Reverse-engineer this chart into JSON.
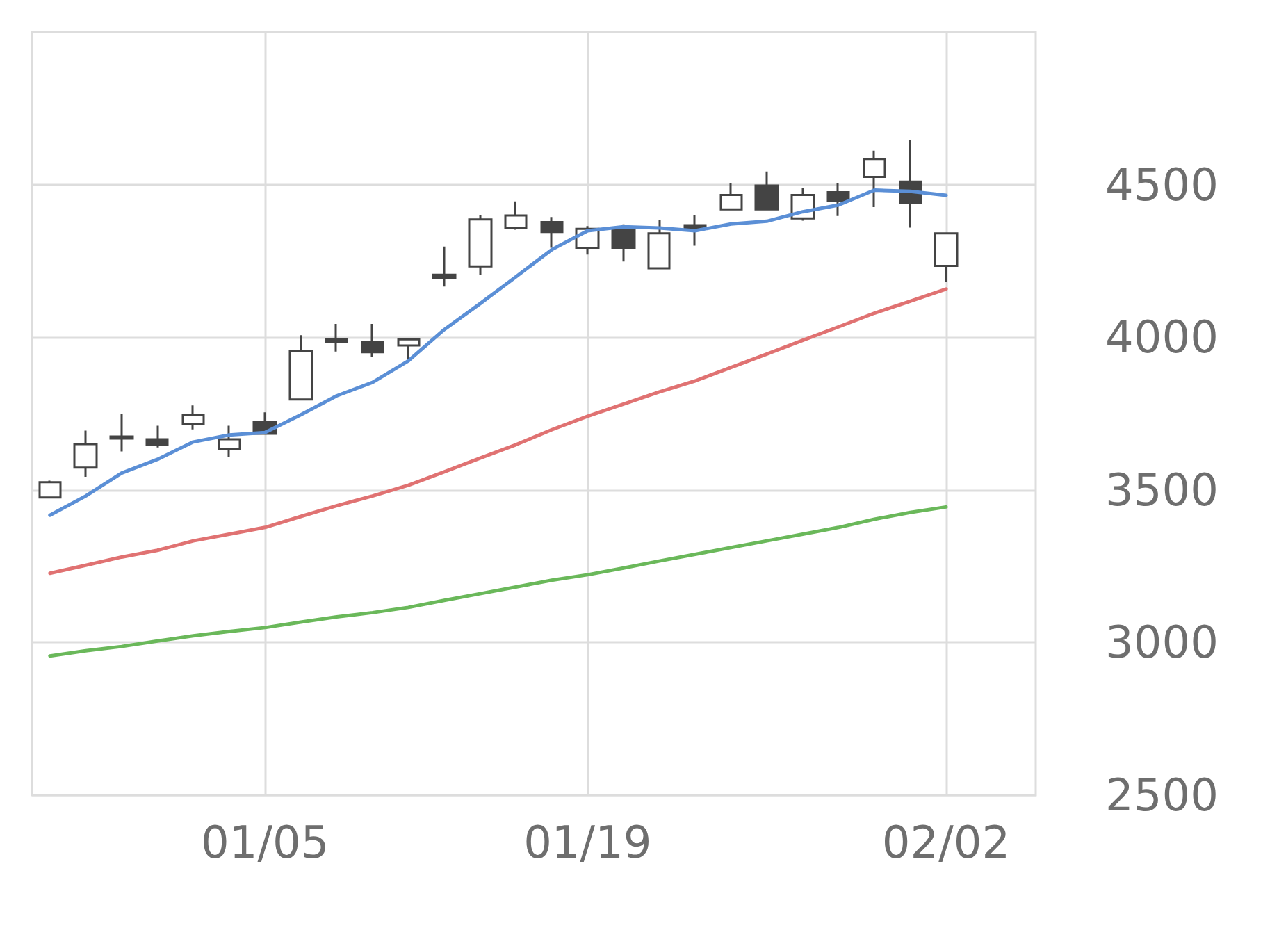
{
  "chart_data": {
    "type": "candlestick",
    "categories": [
      null,
      null,
      null,
      null,
      null,
      null,
      "01/05",
      null,
      null,
      null,
      null,
      null,
      null,
      null,
      null,
      "01/19",
      null,
      null,
      null,
      null,
      null,
      null,
      null,
      null,
      null,
      "02/02",
      null,
      null
    ],
    "ohlc": [
      [
        3475,
        3530,
        3475,
        3525
      ],
      [
        3573,
        3694,
        3543,
        3650
      ],
      [
        3675,
        3750,
        3626,
        3668
      ],
      [
        3666,
        3710,
        3639,
        3647
      ],
      [
        3715,
        3777,
        3698,
        3746
      ],
      [
        3633,
        3710,
        3608,
        3666
      ],
      [
        3724,
        3754,
        3684,
        3684
      ],
      [
        3796,
        4007,
        3796,
        3956
      ],
      [
        3993,
        4044,
        3953,
        3985
      ],
      [
        3985,
        4044,
        3935,
        3951
      ],
      [
        3973,
        3997,
        3929,
        3993
      ],
      [
        4205,
        4297,
        4166,
        4195
      ],
      [
        4232,
        4401,
        4204,
        4386
      ],
      [
        4359,
        4445,
        4352,
        4399
      ],
      [
        4377,
        4394,
        4293,
        4345
      ],
      [
        4293,
        4364,
        4271,
        4355
      ],
      [
        4352,
        4370,
        4248,
        4293
      ],
      [
        4226,
        4385,
        4224,
        4340
      ],
      [
        4367,
        4399,
        4300,
        4358
      ],
      [
        4419,
        4504,
        4419,
        4466
      ],
      [
        4497,
        4543,
        4419,
        4419
      ],
      [
        4389,
        4490,
        4382,
        4466
      ],
      [
        4475,
        4504,
        4397,
        4446
      ],
      [
        4525,
        4611,
        4426,
        4584
      ],
      [
        4510,
        4645,
        4359,
        4441
      ],
      [
        4234,
        4340,
        4182,
        4340
      ],
      null,
      null
    ],
    "color": "#444444",
    "series": [
      {
        "type": "line",
        "color": "#5b8fd6",
        "values": [
          3417,
          3480,
          3555,
          3600,
          3657,
          3680,
          3688,
          3746,
          3808,
          3852,
          3923,
          4025,
          4110,
          4198,
          4287,
          4349,
          4362,
          4358,
          4349,
          4371,
          4380,
          4411,
          4433,
          4482,
          4478,
          4465,
          null,
          null
        ]
      },
      {
        "type": "line",
        "color": "#e07272",
        "values": [
          3227,
          3253,
          3280,
          3302,
          3333,
          3355,
          3377,
          3413,
          3448,
          3480,
          3515,
          3559,
          3604,
          3648,
          3697,
          3741,
          3781,
          3821,
          3857,
          3901,
          3945,
          3990,
          4034,
          4079,
          4118,
          4158,
          null,
          null
        ]
      },
      {
        "type": "line",
        "color": "#6ab85a",
        "values": [
          2956,
          2973,
          2987,
          3005,
          3022,
          3036,
          3049,
          3067,
          3084,
          3098,
          3115,
          3138,
          3160,
          3182,
          3204,
          3222,
          3244,
          3267,
          3289,
          3311,
          3333,
          3355,
          3377,
          3404,
          3426,
          3444,
          null,
          null
        ]
      }
    ],
    "ylim": [
      2500,
      5000
    ],
    "yticks": [
      2500,
      3000,
      3500,
      4000,
      4500
    ],
    "grid": true,
    "marker": "none",
    "line_style": "solid"
  }
}
